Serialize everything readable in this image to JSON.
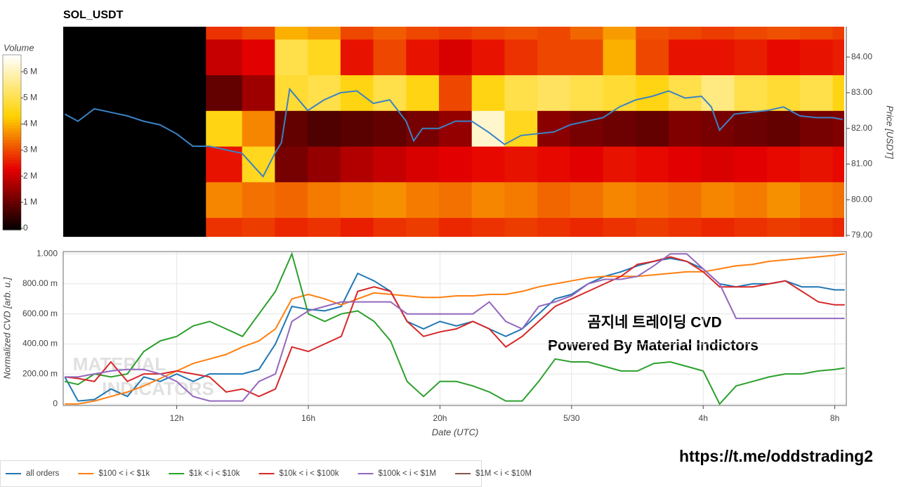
{
  "chart_data": [
    {
      "type": "heatmap",
      "title": "SOL_USDT",
      "colorbar_title": "Volume",
      "ylabel": "Price [USDT]",
      "xlim": [
        8.55,
        32.35
      ],
      "ylim": [
        78.96,
        84.85
      ],
      "yticks": [
        {
          "value": 79,
          "label": "79.00"
        },
        {
          "value": 80,
          "label": "80.00"
        },
        {
          "value": 81,
          "label": "81.00"
        },
        {
          "value": 82,
          "label": "82.00"
        },
        {
          "value": 83,
          "label": "83.00"
        },
        {
          "value": 84,
          "label": "84.00"
        }
      ],
      "zlim": [
        0,
        6650000
      ],
      "zticks": [
        0,
        {
          "value": 1000000,
          "label": "1 M"
        },
        {
          "value": 2000000,
          "label": "2 M"
        },
        {
          "value": 3000000,
          "label": "3 M"
        },
        {
          "value": 4000000,
          "label": "4 M"
        },
        {
          "value": 5000000,
          "label": "5 M"
        },
        {
          "value": 6000000,
          "label": "6 M"
        }
      ],
      "colorscale": [
        [
          0,
          "#000000"
        ],
        [
          0.35,
          "#e60000"
        ],
        [
          0.65,
          "#ffd200"
        ],
        [
          1,
          "#ffffff"
        ]
      ],
      "xbins": [
        8.55,
        12.9,
        14,
        15,
        16,
        17,
        18,
        19,
        20,
        21,
        22,
        23,
        24,
        25,
        26,
        27,
        28,
        29,
        30,
        31,
        32,
        32.35
      ],
      "y": [
        79,
        80,
        81,
        82,
        83,
        84,
        85
      ],
      "z": [
        [
          0,
          2800000,
          2900000,
          2700000,
          2800000,
          2600000,
          2800000,
          2900000,
          2700000,
          2800000,
          2900000,
          2800000,
          2700000,
          2800000,
          2900000,
          2800000,
          2700000,
          2800000,
          2900000,
          2800000,
          2700000
        ],
        [
          0,
          3600000,
          3400000,
          3300000,
          3500000,
          3600000,
          3700000,
          3500000,
          3400000,
          3600000,
          3500000,
          3300000,
          3400000,
          3600000,
          3500000,
          3400000,
          3600000,
          3500000,
          3700000,
          3500000,
          3400000
        ],
        [
          0,
          2500000,
          4600000,
          1200000,
          1500000,
          1800000,
          2000000,
          2200000,
          2300000,
          2400000,
          2500000,
          2400000,
          2300000,
          2500000,
          2400000,
          2300000,
          2200000,
          2300000,
          2400000,
          2500000,
          2400000
        ],
        [
          0,
          4500000,
          3600000,
          1000000,
          800000,
          900000,
          1000000,
          1200000,
          1500000,
          6200000,
          4600000,
          1400000,
          1200000,
          1100000,
          1000000,
          1300000,
          1200000,
          1100000,
          1000000,
          1200000,
          1300000
        ],
        [
          0,
          1000000,
          1600000,
          4800000,
          5000000,
          4500000,
          5000000,
          4500000,
          3000000,
          4500000,
          5000000,
          5200000,
          5000000,
          4800000,
          4500000,
          5000000,
          5500000,
          5000000,
          4800000,
          5000000,
          4500000
        ],
        [
          0,
          2000000,
          2300000,
          5000000,
          4600000,
          2500000,
          3000000,
          2500000,
          2200000,
          2500000,
          2800000,
          3000000,
          3000000,
          4000000,
          3000000,
          2500000,
          2500000,
          2600000,
          2400000,
          2500000,
          2600000
        ],
        [
          0,
          2800000,
          3000000,
          4000000,
          3800000,
          3000000,
          3200000,
          3000000,
          2900000,
          3000000,
          3100000,
          3000000,
          3300000,
          3800000,
          3100000,
          3000000,
          2900000,
          3000000,
          3100000,
          3000000,
          2900000
        ]
      ],
      "line": {
        "color": "#3b82c4",
        "x": [
          8.6,
          9,
          9.5,
          10,
          10.5,
          11,
          11.5,
          12,
          12.5,
          13,
          13.5,
          14,
          14.64,
          15,
          15.2,
          15.45,
          16,
          16.5,
          17,
          17.5,
          18,
          18.5,
          19,
          19.23,
          19.5,
          20,
          20.5,
          21,
          21.5,
          22,
          22.5,
          23,
          23.5,
          24,
          24.5,
          25,
          25.5,
          26,
          26.5,
          27,
          27.5,
          28,
          28.3,
          28.55,
          29,
          29.5,
          30,
          30.5,
          31,
          31.5,
          32,
          32.3
        ],
        "values": [
          82.4,
          82.2,
          82.55,
          82.45,
          82.35,
          82.2,
          82.1,
          81.85,
          81.5,
          81.5,
          81.4,
          81.3,
          80.65,
          81.3,
          81.6,
          83.1,
          82.5,
          82.8,
          83.0,
          83.05,
          82.7,
          82.8,
          82.2,
          81.65,
          82.0,
          82.0,
          82.2,
          82.2,
          81.9,
          81.55,
          81.8,
          81.85,
          81.9,
          82.1,
          82.2,
          82.3,
          82.6,
          82.8,
          82.9,
          83.05,
          82.85,
          82.9,
          82.6,
          81.95,
          82.4,
          82.45,
          82.5,
          82.6,
          82.35,
          82.3,
          82.3,
          82.25
        ]
      }
    },
    {
      "type": "line",
      "xlabel": "Date (UTC)",
      "ylabel": "Normalized CVD [arb. u.]",
      "grid": true,
      "legend": "bottom-left",
      "xlim": [
        8.55,
        32.35
      ],
      "ylim": [
        -0.01,
        1.015
      ],
      "xticks": [
        {
          "value": 12,
          "label": "12h"
        },
        {
          "value": 16,
          "label": "16h"
        },
        {
          "value": 20,
          "label": "20h"
        },
        {
          "value": 24,
          "label": "5/30"
        },
        {
          "value": 28,
          "label": "4h"
        },
        {
          "value": 32,
          "label": "8h"
        }
      ],
      "yticks": [
        0,
        {
          "value": 0.2,
          "label": "200.00 m"
        },
        {
          "value": 0.4,
          "label": "400.00 m"
        },
        {
          "value": 0.6,
          "label": "600.00 m"
        },
        {
          "value": 0.8,
          "label": "800.00 m"
        },
        {
          "value": 1,
          "label": "1.000"
        }
      ],
      "x": [
        8.6,
        9,
        9.5,
        10,
        10.5,
        11,
        11.5,
        12,
        12.5,
        13,
        13.5,
        14,
        14.5,
        15,
        15.5,
        16,
        16.5,
        17,
        17.5,
        18,
        18.5,
        19,
        19.5,
        20,
        20.5,
        21,
        21.5,
        22,
        22.5,
        23,
        23.5,
        24,
        24.5,
        25,
        25.5,
        26,
        26.5,
        27,
        27.5,
        28,
        28.5,
        29,
        29.5,
        30,
        30.5,
        31,
        31.5,
        32,
        32.3
      ],
      "series": [
        {
          "name": "all orders",
          "color": "#1f77b4",
          "values": [
            0.18,
            0.02,
            0.03,
            0.1,
            0.05,
            0.18,
            0.15,
            0.2,
            0.15,
            0.2,
            0.2,
            0.2,
            0.23,
            0.4,
            0.65,
            0.63,
            0.62,
            0.65,
            0.87,
            0.82,
            0.75,
            0.55,
            0.5,
            0.55,
            0.52,
            0.55,
            0.5,
            0.45,
            0.5,
            0.6,
            0.7,
            0.73,
            0.8,
            0.85,
            0.88,
            0.92,
            0.95,
            0.97,
            0.95,
            0.9,
            0.8,
            0.78,
            0.8,
            0.8,
            0.82,
            0.78,
            0.78,
            0.76,
            0.76
          ]
        },
        {
          "name": "$100 < i < $1k",
          "color": "#ff7f0e",
          "values": [
            0,
            0,
            0.02,
            0.05,
            0.08,
            0.12,
            0.17,
            0.22,
            0.27,
            0.3,
            0.33,
            0.38,
            0.42,
            0.5,
            0.7,
            0.73,
            0.7,
            0.66,
            0.7,
            0.74,
            0.73,
            0.72,
            0.71,
            0.71,
            0.72,
            0.72,
            0.73,
            0.73,
            0.75,
            0.78,
            0.8,
            0.82,
            0.84,
            0.85,
            0.85,
            0.85,
            0.86,
            0.87,
            0.88,
            0.88,
            0.9,
            0.92,
            0.93,
            0.95,
            0.96,
            0.97,
            0.98,
            0.99,
            1.0
          ]
        },
        {
          "name": "$1k < i < $10k",
          "color": "#2ca02c",
          "values": [
            0.15,
            0.13,
            0.2,
            0.18,
            0.2,
            0.35,
            0.42,
            0.45,
            0.52,
            0.55,
            0.5,
            0.45,
            0.6,
            0.75,
            1.0,
            0.6,
            0.55,
            0.6,
            0.62,
            0.55,
            0.42,
            0.15,
            0.05,
            0.15,
            0.15,
            0.12,
            0.08,
            0.02,
            0.02,
            0.15,
            0.3,
            0.28,
            0.28,
            0.25,
            0.22,
            0.22,
            0.27,
            0.28,
            0.25,
            0.22,
            0,
            0.12,
            0.15,
            0.18,
            0.2,
            0.2,
            0.22,
            0.23,
            0.24
          ]
        },
        {
          "name": "$10k < i < $100k",
          "color": "#d62728",
          "values": [
            0.18,
            0.17,
            0.15,
            0.28,
            0.15,
            0.2,
            0.2,
            0.22,
            0.2,
            0.18,
            0.08,
            0.1,
            0.05,
            0.1,
            0.38,
            0.35,
            0.4,
            0.45,
            0.75,
            0.78,
            0.75,
            0.55,
            0.45,
            0.48,
            0.5,
            0.55,
            0.5,
            0.38,
            0.45,
            0.55,
            0.65,
            0.7,
            0.75,
            0.8,
            0.85,
            0.93,
            0.95,
            0.98,
            0.95,
            0.88,
            0.78,
            0.78,
            0.78,
            0.8,
            0.82,
            0.75,
            0.68,
            0.66,
            0.66
          ]
        },
        {
          "name": "$100k < i < $1M",
          "color": "#9467bd",
          "values": [
            0.18,
            0.18,
            0.2,
            0.22,
            0.23,
            0.23,
            0.2,
            0.15,
            0.05,
            0.02,
            0.02,
            0.02,
            0.15,
            0.2,
            0.55,
            0.62,
            0.65,
            0.68,
            0.68,
            0.68,
            0.68,
            0.6,
            0.6,
            0.6,
            0.6,
            0.6,
            0.68,
            0.55,
            0.5,
            0.65,
            0.68,
            0.72,
            0.8,
            0.83,
            0.83,
            0.85,
            0.92,
            1.0,
            1.0,
            0.9,
            0.8,
            0.57,
            0.57,
            0.57,
            0.57,
            0.57,
            0.57,
            0.57,
            0.57
          ]
        },
        {
          "name": "$1M < i < $10M",
          "color": "#8c564b",
          "values": [
            null,
            null,
            null,
            null,
            null,
            null,
            null,
            null,
            null,
            null,
            null,
            null,
            null,
            null,
            null,
            null,
            null,
            null,
            null,
            null,
            null,
            null,
            null,
            null,
            null,
            null,
            null,
            null,
            null,
            null,
            null,
            null,
            null,
            null,
            null,
            null,
            null,
            null,
            null,
            null,
            null,
            null,
            null,
            null,
            null,
            null,
            null,
            null,
            null
          ]
        }
      ],
      "annotations": [
        "곰지네 트레이딩 CVD",
        "Powered By Material Indictors"
      ],
      "watermark": [
        "MATERIAL",
        "INDICATORS"
      ]
    }
  ],
  "footer_link": "https://t.me/oddstrading2"
}
